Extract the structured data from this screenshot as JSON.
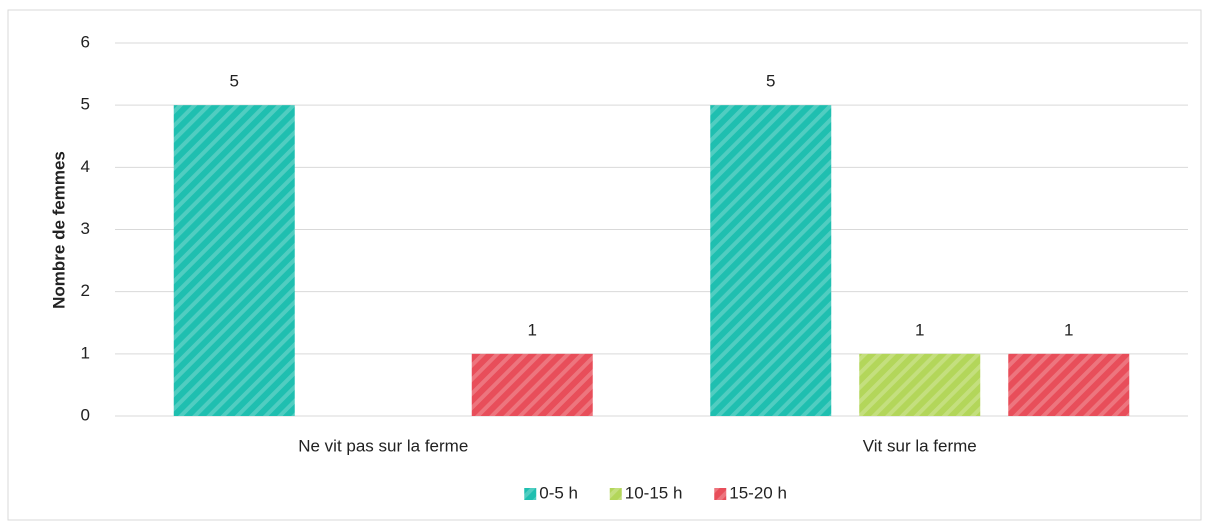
{
  "chart_data": {
    "type": "bar",
    "y_label": "Nombre de femmes",
    "categories": [
      "Ne vit pas sur la ferme",
      "Vit sur la ferme"
    ],
    "series": [
      {
        "name": "0-5 h",
        "color": "#1fbfb0",
        "values": [
          5,
          5
        ]
      },
      {
        "name": "10-15 h",
        "color": "#b3d65a",
        "values": [
          null,
          1
        ]
      },
      {
        "name": "15-20 h",
        "color": "#e84e5a",
        "values": [
          1,
          1
        ]
      }
    ],
    "ylim": [
      0,
      6
    ],
    "yticks": [
      0,
      1,
      2,
      3,
      4,
      5,
      6
    ],
    "grid": true,
    "legend": "bottom"
  }
}
